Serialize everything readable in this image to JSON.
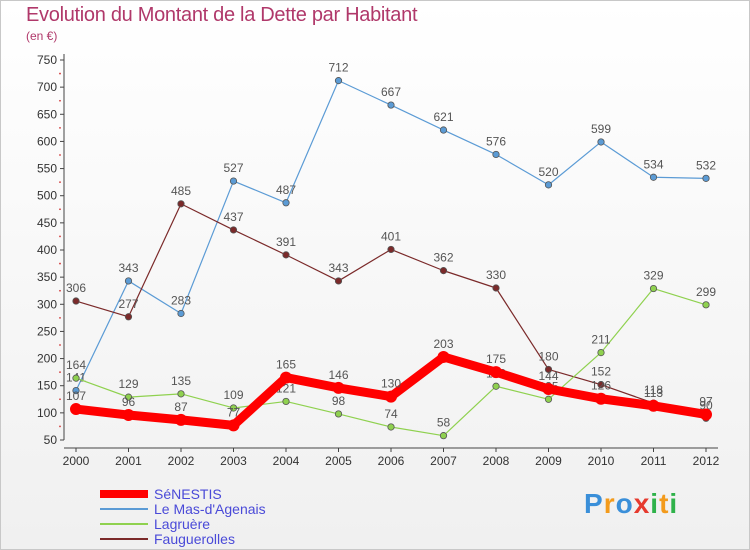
{
  "title": "Evolution du Montant de la Dette par Habitant",
  "subtitle": "(en €)",
  "logo": {
    "letters": [
      "P",
      "r",
      "o",
      "x",
      "i",
      "t",
      "i"
    ],
    "colors": [
      "#3a8fd9",
      "#f39b1c",
      "#3a8fd9",
      "#e63a2e",
      "#2fb24a",
      "#f39b1c",
      "#2fb24a"
    ]
  },
  "chart_data": {
    "type": "line",
    "title": "Evolution du Montant de la Dette par Habitant",
    "ylabel": "(en €)",
    "xlabel": "",
    "x": [
      "2000",
      "2001",
      "2002",
      "2003",
      "2004",
      "2005",
      "2006",
      "2007",
      "2008",
      "2009",
      "2010",
      "2011",
      "2012"
    ],
    "ylim": [
      50,
      750
    ],
    "yticks": [
      50,
      100,
      150,
      200,
      250,
      300,
      350,
      400,
      450,
      500,
      550,
      600,
      650,
      700,
      750
    ],
    "grid": false,
    "legend_position": "bottom-left",
    "series": [
      {
        "name": "Le Mas-d'Agenais",
        "color": "#5b9bd5",
        "values": [
          141,
          343,
          283,
          527,
          487,
          712,
          667,
          621,
          576,
          520,
          599,
          534,
          532
        ],
        "labels": [
          "141",
          "343",
          "283",
          "527",
          "487",
          "712",
          "667",
          "621",
          "576",
          "520",
          "599",
          "534",
          "532"
        ]
      },
      {
        "name": "Fauguerolles",
        "color": "#7b2a2a",
        "values": [
          306,
          277,
          485,
          437,
          391,
          343,
          401,
          362,
          330,
          180,
          152,
          118,
          90
        ],
        "labels": [
          "306",
          "277",
          "485",
          "437",
          "391",
          "343",
          "401",
          "362",
          "330",
          "180",
          "152",
          "118",
          "90"
        ]
      },
      {
        "name": "Lagruère",
        "color": "#8fd14f",
        "values": [
          164,
          129,
          135,
          109,
          121,
          98,
          74,
          58,
          149,
          125,
          211,
          329,
          299
        ],
        "labels": [
          "164",
          "129",
          "135",
          "109",
          "121",
          "98",
          "74",
          "58",
          "149",
          "125",
          "211",
          "329",
          "299"
        ]
      },
      {
        "name": "SéNESTIS",
        "color": "#ff0000",
        "values": [
          107,
          96,
          87,
          77,
          165,
          146,
          130,
          203,
          175,
          144,
          126,
          113,
          97
        ],
        "labels": [
          "107",
          "96",
          "87",
          "77",
          "165",
          "146",
          "130",
          "203",
          "175",
          "144",
          "126",
          "113",
          "97"
        ]
      }
    ]
  }
}
